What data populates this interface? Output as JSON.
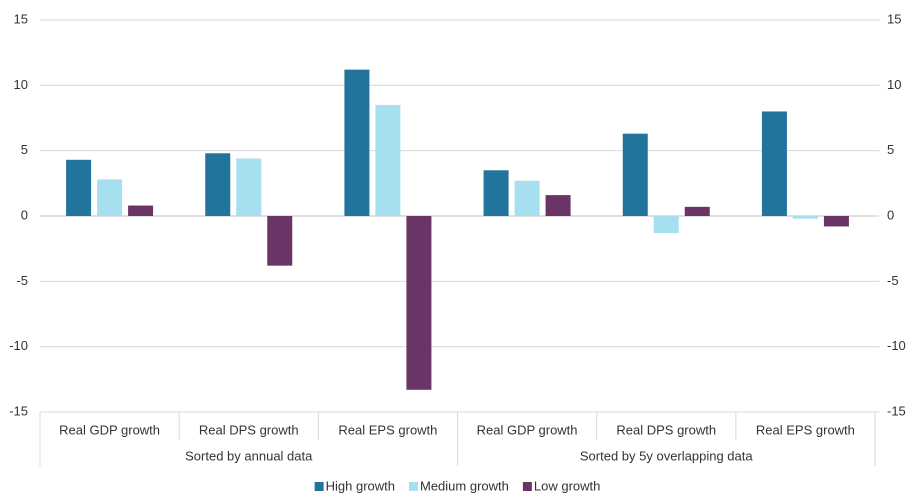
{
  "chart_data": {
    "type": "bar",
    "categories": [
      "Real GDP growth",
      "Real DPS growth",
      "Real EPS growth",
      "Real GDP growth",
      "Real DPS growth",
      "Real EPS growth"
    ],
    "groups": [
      "Sorted by annual data",
      "Sorted by 5y overlapping data"
    ],
    "series": [
      {
        "name": "High growth",
        "color": "#21749b",
        "values": [
          4.3,
          4.8,
          11.2,
          3.5,
          6.3,
          8.0
        ]
      },
      {
        "name": "Medium growth",
        "color": "#a6dff0",
        "values": [
          2.8,
          4.4,
          8.5,
          2.7,
          -1.3,
          -0.2
        ]
      },
      {
        "name": "Low growth",
        "color": "#6a3566",
        "values": [
          0.8,
          -3.8,
          -13.3,
          1.6,
          0.7,
          -0.8
        ]
      }
    ],
    "ylim": [
      -15,
      15
    ],
    "yticks": [
      -15,
      -10,
      -5,
      0,
      5,
      10,
      15
    ],
    "y2lim": [
      -15,
      15
    ],
    "y2ticks": [
      -15,
      -10,
      -5,
      0,
      5,
      10,
      15
    ],
    "grid": true,
    "legend": "bottom"
  }
}
